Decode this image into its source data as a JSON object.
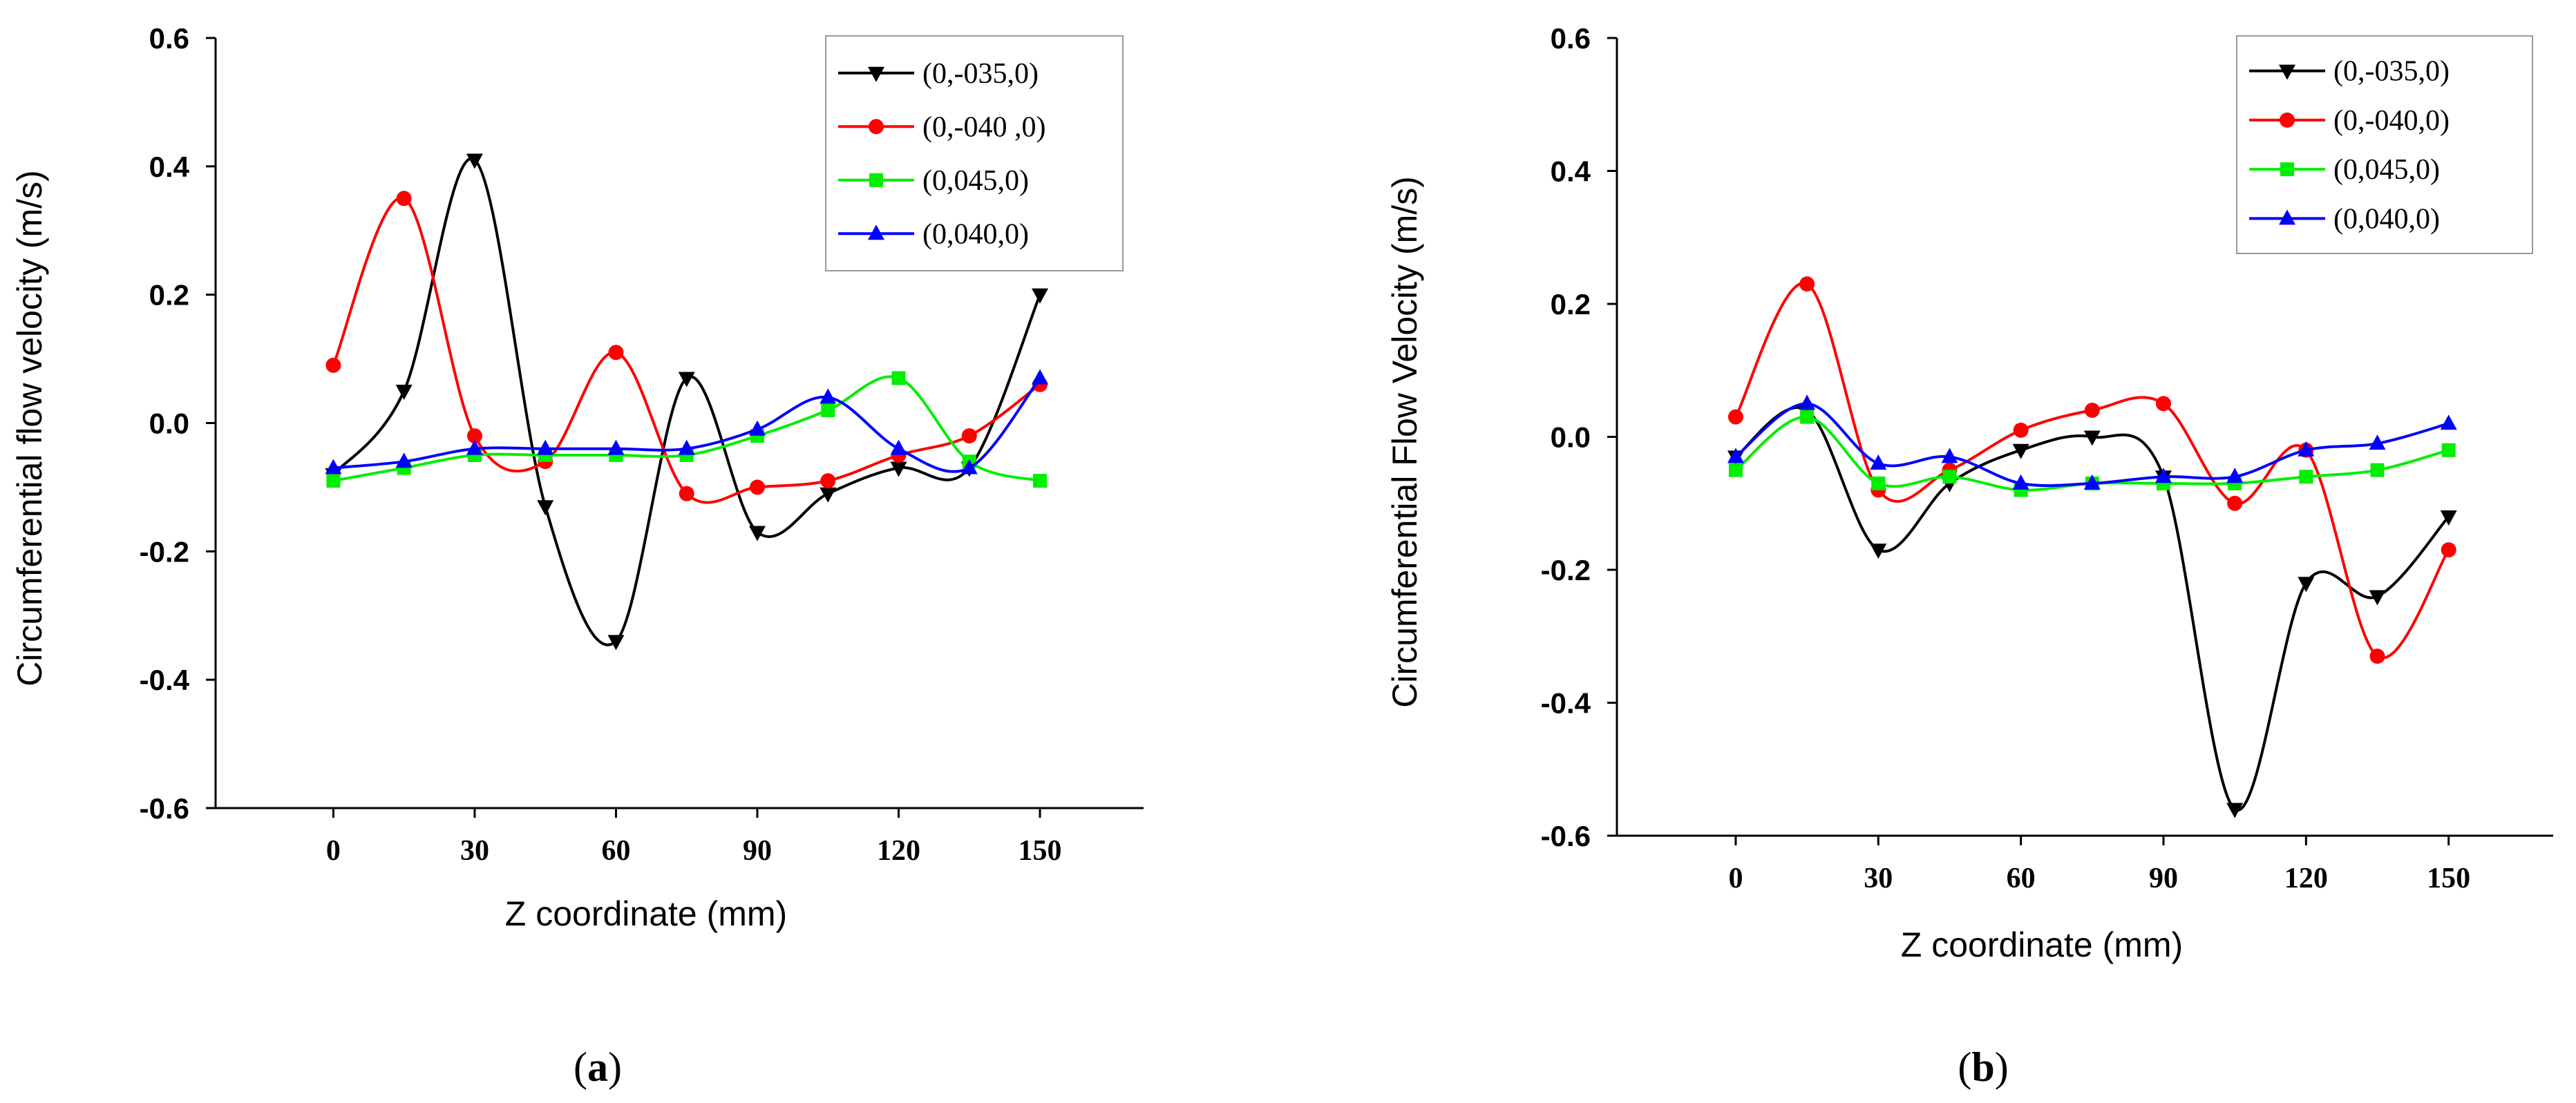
{
  "chart_data": [
    {
      "type": "line",
      "panel_label": "(a)",
      "xlabel": "Z coordinate (mm)",
      "ylabel": "Circumferential flow velocity  (m/s)",
      "xlim": [
        -25,
        172
      ],
      "ylim": [
        -0.6,
        0.6
      ],
      "xticks": [
        0,
        30,
        60,
        90,
        120,
        150
      ],
      "yticks": [
        0.6,
        0.4,
        0.2,
        0.0,
        -0.2,
        -0.4,
        -0.6
      ],
      "ytick_labels": [
        "0.6",
        "0.4",
        "0.2",
        "0.0",
        "-0.2",
        "-0.4",
        "-0.6"
      ],
      "legend_position": "top-right",
      "series": [
        {
          "name": "(0,-035,0)",
          "color": "#000000",
          "marker": "triangle-down",
          "x": [
            0,
            15,
            30,
            45,
            60,
            75,
            90,
            105,
            120,
            135,
            150
          ],
          "y": [
            -0.08,
            0.05,
            0.41,
            -0.13,
            -0.34,
            0.07,
            -0.17,
            -0.11,
            -0.07,
            -0.07,
            0.2
          ]
        },
        {
          "name": "(0,-040 ,0)",
          "color": "#ff0000",
          "marker": "circle",
          "x": [
            0,
            15,
            30,
            45,
            60,
            75,
            90,
            105,
            120,
            135,
            150
          ],
          "y": [
            0.09,
            0.35,
            -0.02,
            -0.06,
            0.11,
            -0.11,
            -0.1,
            -0.09,
            -0.05,
            -0.02,
            0.06
          ]
        },
        {
          "name": "(0,045,0)",
          "color": "#00ee00",
          "marker": "square",
          "x": [
            0,
            15,
            30,
            45,
            60,
            75,
            90,
            105,
            120,
            135,
            150
          ],
          "y": [
            -0.09,
            -0.07,
            -0.05,
            -0.05,
            -0.05,
            -0.05,
            -0.02,
            0.02,
            0.07,
            -0.06,
            -0.09
          ]
        },
        {
          "name": "(0,040,0)",
          "color": "#0000ff",
          "marker": "triangle-up",
          "x": [
            0,
            15,
            30,
            45,
            60,
            75,
            90,
            105,
            120,
            135,
            150
          ],
          "y": [
            -0.07,
            -0.06,
            -0.04,
            -0.04,
            -0.04,
            -0.04,
            -0.01,
            0.04,
            -0.04,
            -0.07,
            0.07
          ]
        }
      ]
    },
    {
      "type": "line",
      "panel_label": "(b)",
      "xlabel": "Z coordinate (mm)",
      "ylabel": "Circumferential Flow Velocity  (m/s)",
      "xlim": [
        -25,
        172
      ],
      "ylim": [
        -0.6,
        0.6
      ],
      "xticks": [
        0,
        30,
        60,
        90,
        120,
        150
      ],
      "yticks": [
        0.6,
        0.4,
        0.2,
        0.0,
        -0.2,
        -0.4,
        -0.6
      ],
      "ytick_labels": [
        "0.6",
        "0.4",
        "0.2",
        "0.0",
        "-0.2",
        "-0.4",
        "-0.6"
      ],
      "legend_position": "top-right",
      "series": [
        {
          "name": "(0,-035,0)",
          "color": "#000000",
          "marker": "triangle-down",
          "x": [
            0,
            15,
            30,
            45,
            60,
            75,
            90,
            105,
            120,
            135,
            150
          ],
          "y": [
            -0.03,
            0.04,
            -0.17,
            -0.07,
            -0.02,
            0.0,
            -0.06,
            -0.56,
            -0.22,
            -0.24,
            -0.12
          ]
        },
        {
          "name": "(0,-040,0)",
          "color": "#ff0000",
          "marker": "circle",
          "x": [
            0,
            15,
            30,
            45,
            60,
            75,
            90,
            105,
            120,
            135,
            150
          ],
          "y": [
            0.03,
            0.23,
            -0.08,
            -0.05,
            0.01,
            0.04,
            0.05,
            -0.1,
            -0.02,
            -0.33,
            -0.17
          ]
        },
        {
          "name": "(0,045,0)",
          "color": "#00ee00",
          "marker": "square",
          "x": [
            0,
            15,
            30,
            45,
            60,
            75,
            90,
            105,
            120,
            135,
            150
          ],
          "y": [
            -0.05,
            0.03,
            -0.07,
            -0.06,
            -0.08,
            -0.07,
            -0.07,
            -0.07,
            -0.06,
            -0.05,
            -0.02
          ]
        },
        {
          "name": "(0,040,0)",
          "color": "#0000ff",
          "marker": "triangle-up",
          "x": [
            0,
            15,
            30,
            45,
            60,
            75,
            90,
            105,
            120,
            135,
            150
          ],
          "y": [
            -0.03,
            0.05,
            -0.04,
            -0.03,
            -0.07,
            -0.07,
            -0.06,
            -0.06,
            -0.02,
            -0.01,
            0.02
          ]
        }
      ]
    }
  ]
}
